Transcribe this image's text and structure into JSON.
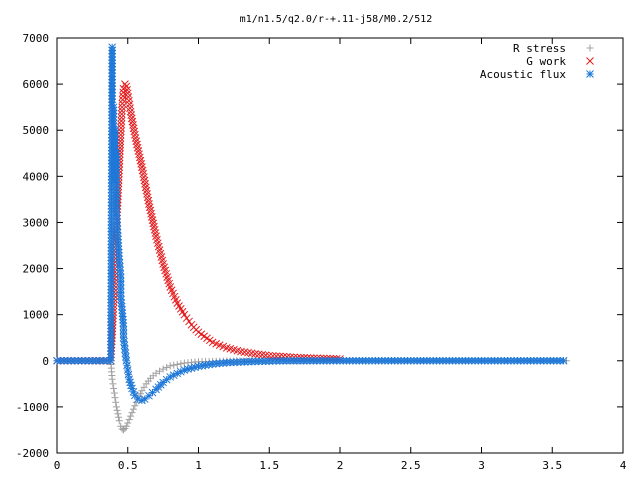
{
  "chart_data": {
    "type": "scatter",
    "title": "m1/n1.5/q2.0/r-+.11-j58/M0.2/512",
    "xlabel": "",
    "ylabel": "",
    "xlim": [
      0,
      4
    ],
    "ylim": [
      -2000,
      7000
    ],
    "xticks": [
      "0",
      "0.5",
      "1",
      "1.5",
      "2",
      "2.5",
      "3",
      "3.5",
      "4"
    ],
    "yticks": [
      "-2000",
      "-1000",
      "0",
      "1000",
      "2000",
      "3000",
      "4000",
      "5000",
      "6000",
      "7000"
    ],
    "grid": false,
    "legend_position": "top-right",
    "series": [
      {
        "name": "R stress",
        "marker": "plus",
        "color": "#a0a0a0",
        "points": [
          [
            0.0,
            0
          ],
          [
            0.2,
            0
          ],
          [
            0.38,
            0
          ],
          [
            0.39,
            -400
          ],
          [
            0.4,
            -600
          ],
          [
            0.41,
            -800
          ],
          [
            0.42,
            -1000
          ],
          [
            0.43,
            -1150
          ],
          [
            0.44,
            -1300
          ],
          [
            0.45,
            -1420
          ],
          [
            0.46,
            -1480
          ],
          [
            0.47,
            -1500
          ],
          [
            0.48,
            -1470
          ],
          [
            0.49,
            -1420
          ],
          [
            0.5,
            -1350
          ],
          [
            0.52,
            -1200
          ],
          [
            0.54,
            -1050
          ],
          [
            0.56,
            -900
          ],
          [
            0.58,
            -780
          ],
          [
            0.6,
            -650
          ],
          [
            0.63,
            -500
          ],
          [
            0.66,
            -380
          ],
          [
            0.7,
            -270
          ],
          [
            0.75,
            -180
          ],
          [
            0.8,
            -110
          ],
          [
            0.9,
            -50
          ],
          [
            1.0,
            -20
          ],
          [
            1.2,
            -5
          ],
          [
            1.5,
            0
          ],
          [
            2.0,
            0
          ],
          [
            2.5,
            0
          ],
          [
            3.0,
            0
          ],
          [
            3.6,
            0
          ]
        ]
      },
      {
        "name": "G work",
        "marker": "cross",
        "color": "#e41a1c",
        "points": [
          [
            0.0,
            0
          ],
          [
            0.2,
            0
          ],
          [
            0.38,
            0
          ],
          [
            0.4,
            1200
          ],
          [
            0.41,
            2000
          ],
          [
            0.42,
            2800
          ],
          [
            0.43,
            3500
          ],
          [
            0.44,
            4200
          ],
          [
            0.45,
            4900
          ],
          [
            0.46,
            5500
          ],
          [
            0.47,
            5900
          ],
          [
            0.48,
            6000
          ],
          [
            0.49,
            5950
          ],
          [
            0.5,
            5800
          ],
          [
            0.52,
            5400
          ],
          [
            0.55,
            4900
          ],
          [
            0.6,
            4200
          ],
          [
            0.65,
            3400
          ],
          [
            0.7,
            2700
          ],
          [
            0.75,
            2100
          ],
          [
            0.8,
            1600
          ],
          [
            0.85,
            1250
          ],
          [
            0.9,
            1000
          ],
          [
            0.95,
            780
          ],
          [
            1.0,
            620
          ],
          [
            1.1,
            400
          ],
          [
            1.2,
            280
          ],
          [
            1.3,
            200
          ],
          [
            1.4,
            150
          ],
          [
            1.5,
            110
          ],
          [
            1.7,
            70
          ],
          [
            2.0,
            40
          ]
        ]
      },
      {
        "name": "Acoustic flux",
        "marker": "star",
        "color": "#1f78d8",
        "points": [
          [
            0.0,
            0
          ],
          [
            0.1,
            0
          ],
          [
            0.2,
            0
          ],
          [
            0.3,
            0
          ],
          [
            0.38,
            0
          ],
          [
            0.39,
            6800
          ],
          [
            0.39,
            5600
          ],
          [
            0.4,
            5500
          ],
          [
            0.4,
            4100
          ],
          [
            0.41,
            5000
          ],
          [
            0.41,
            3900
          ],
          [
            0.42,
            4500
          ],
          [
            0.42,
            3300
          ],
          [
            0.43,
            2700
          ],
          [
            0.44,
            2200
          ],
          [
            0.45,
            1800
          ],
          [
            0.45,
            1400
          ],
          [
            0.46,
            1100
          ],
          [
            0.47,
            750
          ],
          [
            0.47,
            500
          ],
          [
            0.48,
            250
          ],
          [
            0.49,
            0
          ],
          [
            0.5,
            -200
          ],
          [
            0.51,
            -400
          ],
          [
            0.53,
            -600
          ],
          [
            0.55,
            -750
          ],
          [
            0.57,
            -830
          ],
          [
            0.6,
            -860
          ],
          [
            0.62,
            -830
          ],
          [
            0.65,
            -760
          ],
          [
            0.7,
            -620
          ],
          [
            0.75,
            -470
          ],
          [
            0.8,
            -350
          ],
          [
            0.9,
            -200
          ],
          [
            1.0,
            -120
          ],
          [
            1.1,
            -70
          ],
          [
            1.2,
            -40
          ],
          [
            1.4,
            -15
          ],
          [
            1.6,
            0
          ],
          [
            2.0,
            0
          ],
          [
            2.5,
            0
          ],
          [
            3.0,
            0
          ],
          [
            3.3,
            0
          ],
          [
            3.58,
            0
          ]
        ]
      }
    ]
  }
}
